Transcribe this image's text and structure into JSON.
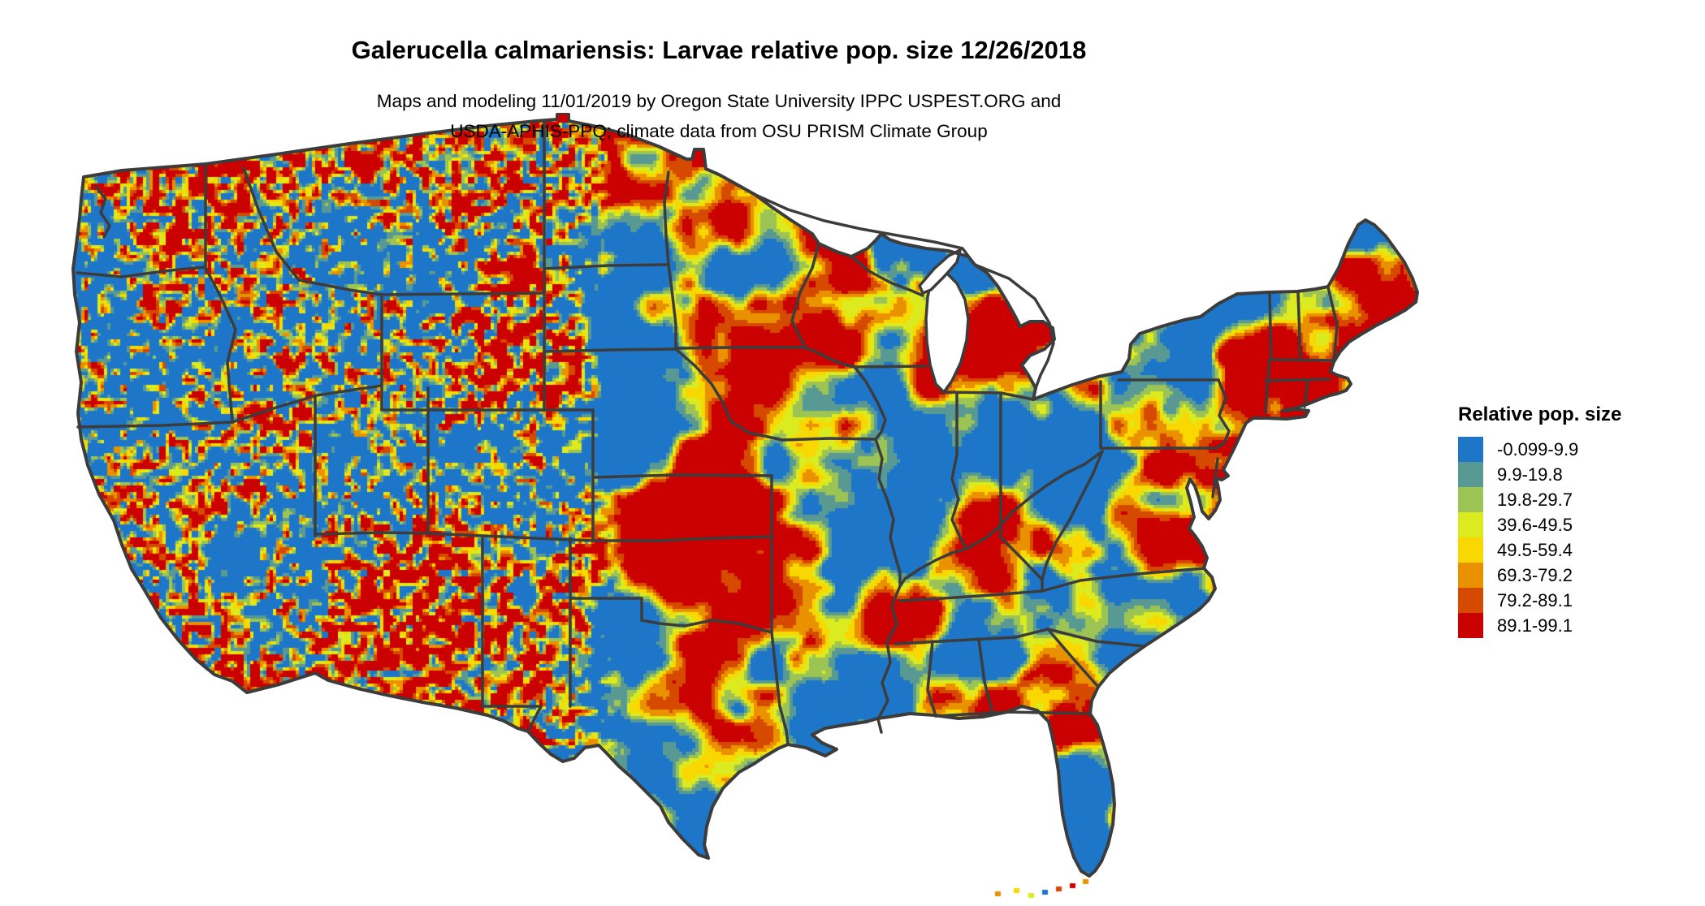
{
  "header": {
    "title": "Galerucella calmariensis: Larvae relative pop. size 12/26/2018",
    "subtitle_line1": "Maps and modeling 11/01/2019 by Oregon State University IPPC USPEST.ORG and",
    "subtitle_line2": "USDA-APHIS-PPQ; climate data from OSU PRISM Climate Group"
  },
  "legend": {
    "title": "Relative pop. size",
    "entries": [
      {
        "label": "-0.099-9.9",
        "color": "#1d76c8"
      },
      {
        "label": "9.9-19.8",
        "color": "#589a93"
      },
      {
        "label": "19.8-29.7",
        "color": "#9cc455"
      },
      {
        "label": "39.6-49.5",
        "color": "#dcea20"
      },
      {
        "label": "49.5-59.4",
        "color": "#f8d800"
      },
      {
        "label": "69.3-79.2",
        "color": "#ea9100"
      },
      {
        "label": "79.2-89.1",
        "color": "#d64a00"
      },
      {
        "label": "89.1-99.1",
        "color": "#cb0000"
      }
    ]
  },
  "map": {
    "base_color": "#1d76c8",
    "state_border_color": "#3c3c3c",
    "water_color": "#ffffff"
  }
}
